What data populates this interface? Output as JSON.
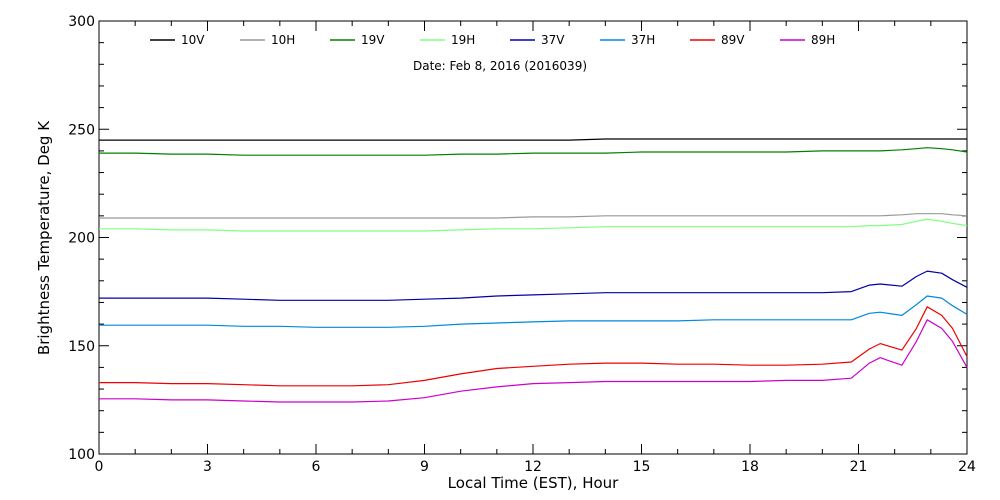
{
  "chart_data": {
    "type": "line",
    "subtitle": "Date: Feb  8, 2016 (2016039)",
    "xlabel": "Local Time (EST), Hour",
    "ylabel": "Brightness Temperature, Deg K",
    "xlim": [
      0,
      24
    ],
    "ylim": [
      100,
      300
    ],
    "xticks": [
      0,
      3,
      6,
      9,
      12,
      15,
      18,
      21,
      24
    ],
    "xtick_labels": [
      "0",
      "3",
      "6",
      "9",
      "12",
      "15",
      "18",
      "21",
      "24"
    ],
    "yticks": [
      100,
      150,
      200,
      250,
      300
    ],
    "ytick_labels": [
      "100",
      "150",
      "200",
      "250",
      "300"
    ],
    "grid": false,
    "legend_position": "top",
    "x": [
      0,
      1,
      2,
      3,
      4,
      5,
      6,
      7,
      8,
      9,
      10,
      11,
      12,
      13,
      14,
      15,
      16,
      17,
      18,
      19,
      20,
      20.8,
      21.3,
      21.6,
      22.2,
      22.6,
      22.9,
      23.3,
      23.6,
      24
    ],
    "series": [
      {
        "name": "10V",
        "color": "#000000",
        "values": [
          245,
          245,
          245,
          245,
          245,
          245,
          245,
          245,
          245,
          245,
          245,
          245,
          245,
          245,
          245.5,
          245.5,
          245.5,
          245.5,
          245.5,
          245.5,
          245.5,
          245.5,
          245.5,
          245.5,
          245.5,
          245.5,
          245.5,
          245.5,
          245.5,
          245.5
        ]
      },
      {
        "name": "10H",
        "color": "#999999",
        "values": [
          209,
          209,
          209,
          209,
          209,
          209,
          209,
          209,
          209,
          209,
          209,
          209,
          209.5,
          209.5,
          210,
          210,
          210,
          210,
          210,
          210,
          210,
          210,
          210,
          210,
          210.5,
          211,
          211,
          211,
          210.5,
          210
        ]
      },
      {
        "name": "19V",
        "color": "#008000",
        "values": [
          239,
          239,
          238.5,
          238.5,
          238,
          238,
          238,
          238,
          238,
          238,
          238.5,
          238.5,
          239,
          239,
          239,
          239.5,
          239.5,
          239.5,
          239.5,
          239.5,
          240,
          240,
          240,
          240,
          240.5,
          241,
          241.5,
          241,
          240.5,
          239.5
        ]
      },
      {
        "name": "19H",
        "color": "#80ff80",
        "values": [
          204,
          204,
          203.5,
          203.5,
          203,
          203,
          203,
          203,
          203,
          203,
          203.5,
          204,
          204,
          204.5,
          205,
          205,
          205,
          205,
          205,
          205,
          205,
          205,
          205.5,
          205.5,
          206,
          207.5,
          208.5,
          207.5,
          206.5,
          205.5
        ]
      },
      {
        "name": "37V",
        "color": "#0000aa",
        "values": [
          172,
          172,
          172,
          172,
          171.5,
          171,
          171,
          171,
          171,
          171.5,
          172,
          173,
          173.5,
          174,
          174.5,
          174.5,
          174.5,
          174.5,
          174.5,
          174.5,
          174.5,
          175,
          178,
          178.5,
          177.5,
          182,
          184.5,
          183.5,
          180.5,
          177
        ]
      },
      {
        "name": "37H",
        "color": "#0088dd",
        "values": [
          159.5,
          159.5,
          159.5,
          159.5,
          159,
          159,
          158.5,
          158.5,
          158.5,
          159,
          160,
          160.5,
          161,
          161.5,
          161.5,
          161.5,
          161.5,
          162,
          162,
          162,
          162,
          162,
          165,
          165.5,
          164,
          169,
          173,
          172,
          168.5,
          164.5
        ]
      },
      {
        "name": "89V",
        "color": "#ee0000",
        "values": [
          133,
          133,
          132.5,
          132.5,
          132,
          131.5,
          131.5,
          131.5,
          132,
          134,
          137,
          139.5,
          140.5,
          141.5,
          142,
          142,
          141.5,
          141.5,
          141,
          141,
          141.5,
          142.5,
          148.5,
          151,
          148,
          158,
          168,
          164,
          158,
          145
        ]
      },
      {
        "name": "89H",
        "color": "#cc00cc",
        "values": [
          125.5,
          125.5,
          125,
          125,
          124.5,
          124,
          124,
          124,
          124.5,
          126,
          129,
          131,
          132.5,
          133,
          133.5,
          133.5,
          133.5,
          133.5,
          133.5,
          134,
          134,
          135,
          142,
          144.5,
          141,
          152,
          162,
          158,
          152,
          140
        ]
      }
    ]
  }
}
